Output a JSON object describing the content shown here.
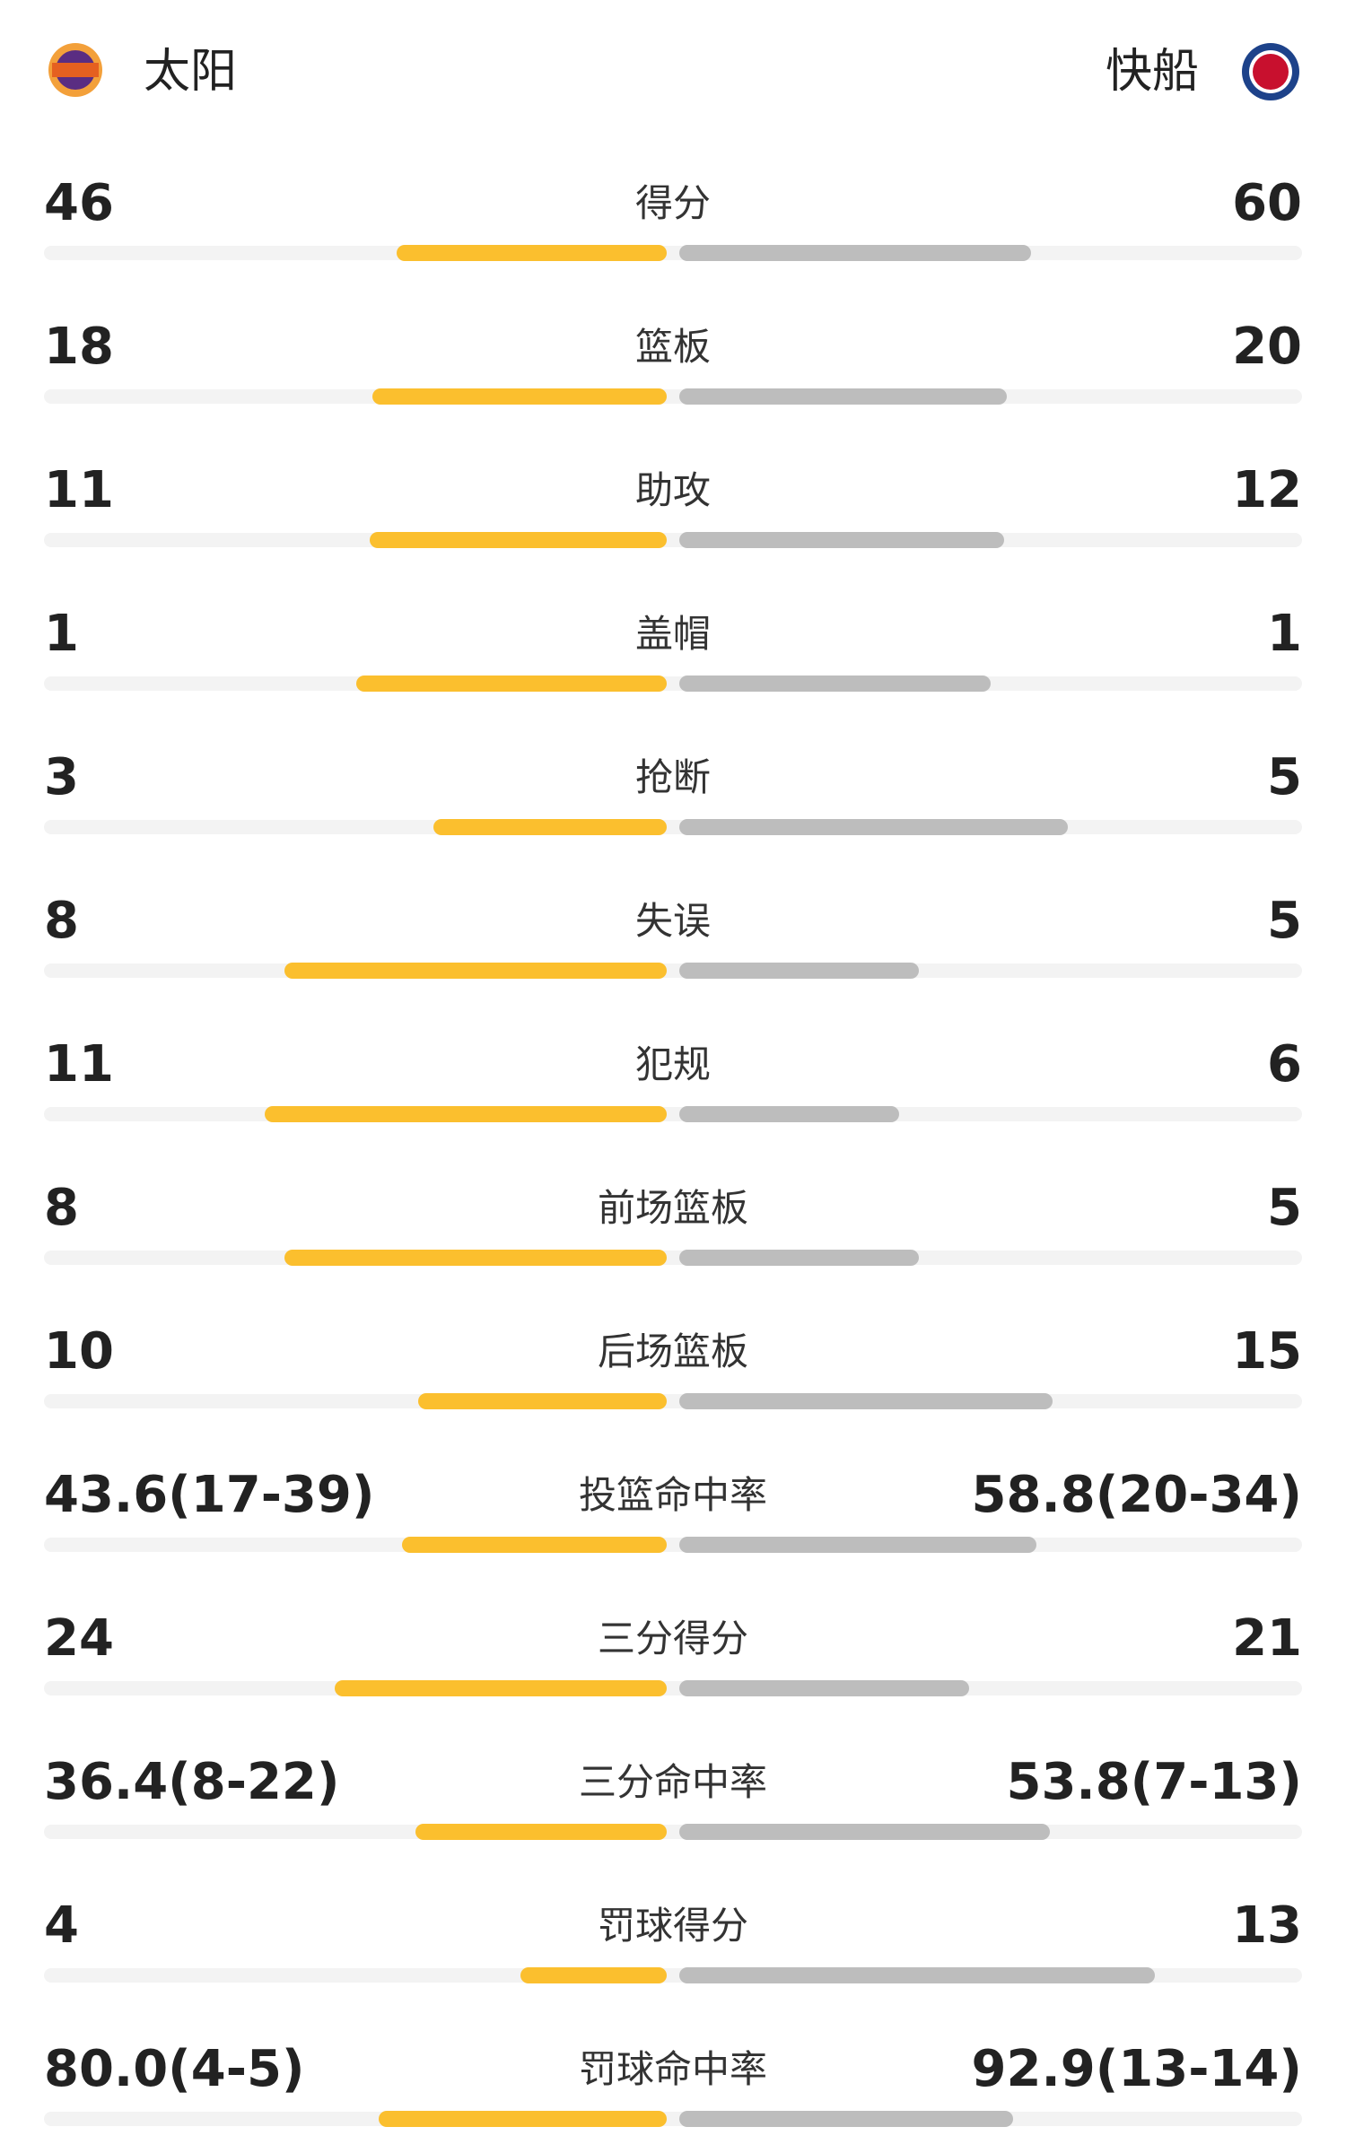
{
  "header": {
    "home": "太阳",
    "away": "快船"
  },
  "stats": [
    {
      "label": "得分",
      "home": 46,
      "away": 60
    },
    {
      "label": "篮板",
      "home": 18,
      "away": 20
    },
    {
      "label": "助攻",
      "home": 11,
      "away": 12
    },
    {
      "label": "盖帽",
      "home": 1,
      "away": 1
    },
    {
      "label": "抢断",
      "home": 3,
      "away": 5
    },
    {
      "label": "失误",
      "home": 8,
      "away": 5
    },
    {
      "label": "犯规",
      "home": 11,
      "away": 6
    },
    {
      "label": "前场篮板",
      "home": 8,
      "away": 5
    },
    {
      "label": "后场篮板",
      "home": 10,
      "away": 15
    },
    {
      "label": "投篮命中率",
      "home": {
        "value": 43.6,
        "label": "43.6(17-39)"
      },
      "away": {
        "value": 58.8,
        "label": "58.8(20-34)"
      }
    },
    {
      "label": "三分得分",
      "home": 24,
      "away": 21
    },
    {
      "label": "三分命中率",
      "home": {
        "value": 36.4,
        "label": "36.4(8-22)"
      },
      "away": {
        "value": 53.8,
        "label": "53.8(7-13)"
      }
    },
    {
      "label": "罚球得分",
      "home": 4,
      "away": 13
    },
    {
      "label": "罚球命中率",
      "home": {
        "value": 80.0,
        "label": "80.0(4-5)"
      },
      "away": {
        "value": 92.9,
        "label": "92.9(13-14)"
      }
    }
  ]
}
